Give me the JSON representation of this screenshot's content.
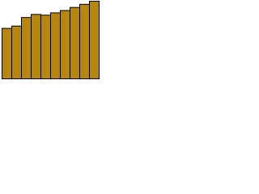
{
  "chart_data": {
    "type": "bar",
    "categories": [
      null,
      null,
      null,
      null,
      null,
      null,
      null,
      null,
      null,
      null
    ],
    "values": [
      65,
      68,
      79,
      83,
      82,
      85,
      88,
      92,
      96,
      100
    ],
    "color": "#b8860b",
    "edgecolor": "#000000",
    "ylim": [
      0,
      100
    ]
  }
}
